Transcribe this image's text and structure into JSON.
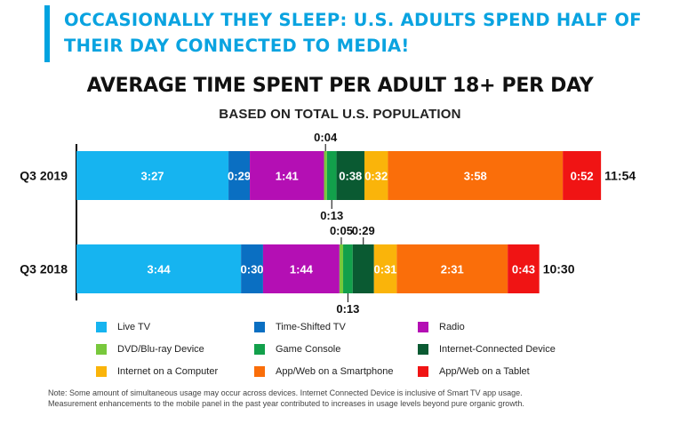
{
  "header": {
    "headline": "Occasionally they sleep: U.S. adults spend half of their day connected to media!"
  },
  "colors": {
    "accent": "#00a3e0",
    "live_tv": "#16b4f0",
    "time_shifted_tv": "#0a6fc2",
    "radio": "#b40fb4",
    "dvd": "#78c83c",
    "game_console": "#12a04b",
    "internet_connected_device": "#0a5a32",
    "internet_computer": "#fab40a",
    "smartphone": "#fa6e0a",
    "tablet": "#f01414"
  },
  "chart_data": {
    "type": "bar",
    "orientation": "horizontal",
    "stacked": true,
    "title": "Average time spent per adult 18+ per day",
    "subtitle": "Based on total U.S. population",
    "unit": "h:mm",
    "categories": [
      "Q3 2019",
      "Q3 2018"
    ],
    "totals": [
      "11:54",
      "10:30"
    ],
    "series": [
      {
        "name": "Live TV",
        "color": "#16b4f0",
        "values": [
          "3:27",
          "3:44"
        ]
      },
      {
        "name": "Time-Shifted TV",
        "color": "#0a6fc2",
        "values": [
          "0:29",
          "0:30"
        ]
      },
      {
        "name": "Radio",
        "color": "#b40fb4",
        "values": [
          "1:41",
          "1:44"
        ]
      },
      {
        "name": "DVD/Blu-ray Device",
        "color": "#78c83c",
        "values": [
          "0:04",
          "0:05"
        ]
      },
      {
        "name": "Game Console",
        "color": "#12a04b",
        "values": [
          "0:13",
          "0:13"
        ]
      },
      {
        "name": "Internet-Connected Device",
        "color": "#0a5a32",
        "values": [
          "0:38",
          "0:29"
        ]
      },
      {
        "name": "Internet on a Computer",
        "color": "#fab40a",
        "values": [
          "0:32",
          "0:31"
        ]
      },
      {
        "name": "App/Web on a Smartphone",
        "color": "#fa6e0a",
        "values": [
          "3:58",
          "2:31"
        ]
      },
      {
        "name": "App/Web on a Tablet",
        "color": "#f01414",
        "values": [
          "0:52",
          "0:43"
        ]
      }
    ],
    "legend_position": "bottom",
    "grid": false
  },
  "footnote": {
    "line1": "Note: Some amount of simultaneous usage may occur across devices. Internet Connected Device is inclusive of Smart TV app usage.",
    "line2": "Measurement enhancements to the mobile panel in the past year contributed to increases in usage levels beyond pure organic growth."
  }
}
